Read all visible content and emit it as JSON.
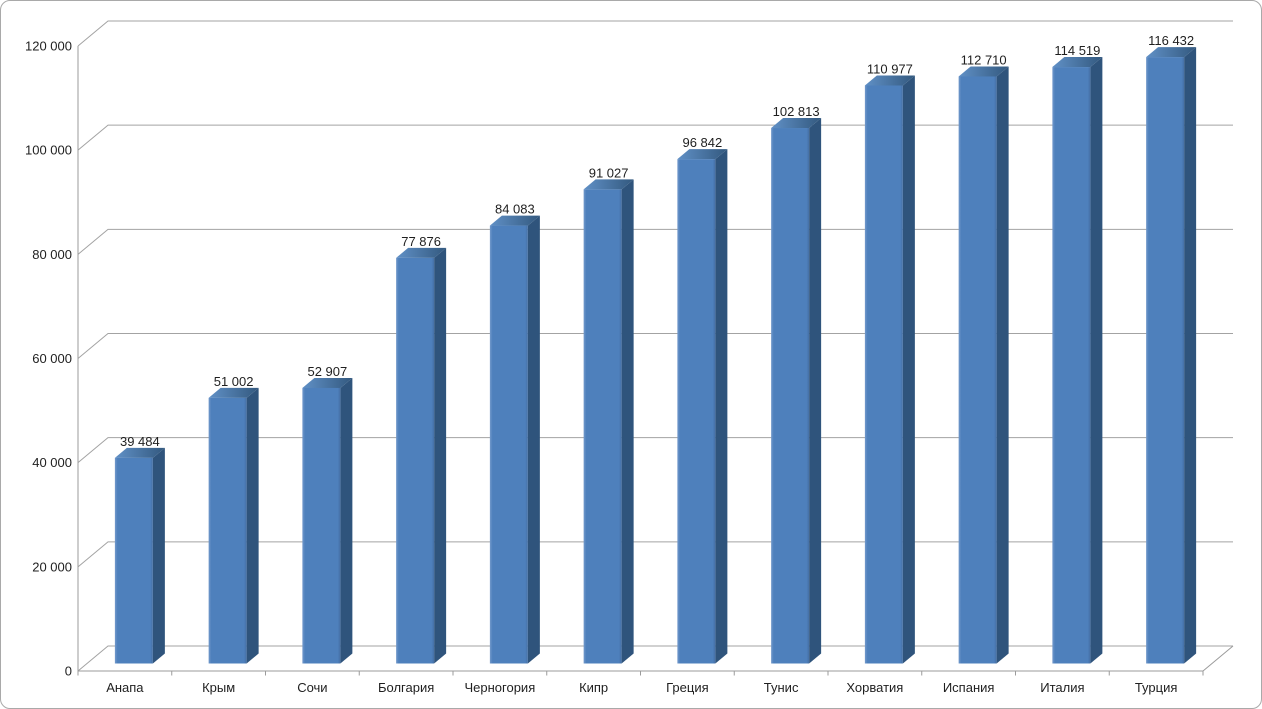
{
  "window": {
    "background": "#FFFFFF",
    "border_color": "#A9A9A9"
  },
  "chart_data": {
    "type": "bar",
    "projection": "3d-column",
    "title": "",
    "xlabel": "",
    "ylabel": "",
    "legend": "none",
    "grid": true,
    "categories": [
      "Анапа",
      "Крым",
      "Сочи",
      "Болгария",
      "Черногория",
      "Кипр",
      "Греция",
      "Тунис",
      "Хорватия",
      "Испания",
      "Италия",
      "Турция"
    ],
    "series": [
      {
        "name": "",
        "values": [
          39484,
          51002,
          52907,
          77876,
          84083,
          91027,
          96842,
          102813,
          110977,
          112710,
          114519,
          116432
        ],
        "value_labels": [
          "39 484",
          "51 002",
          "52 907",
          "77 876",
          "84 083",
          "91 027",
          "96 842",
          "102 813",
          "110 977",
          "112 710",
          "114 519",
          "116 432"
        ]
      }
    ],
    "ylim": [
      0,
      120000
    ],
    "ytick_step": 20000,
    "yticks": [
      0,
      20000,
      40000,
      60000,
      80000,
      100000,
      120000
    ],
    "ytick_labels": [
      "0",
      "20 000",
      "40 000",
      "60 000",
      "80 000",
      "100 000",
      "120 000"
    ],
    "colors": {
      "bar_front": "#4E80BC",
      "bar_front_highlight": "#7299CB",
      "bar_front_shade": "#456FA4",
      "bar_side": "#2F547C",
      "bar_top_light": "#6090C6",
      "bar_top_dark": "#33597F",
      "gridline": "#A3A3A3",
      "axis": "#9B9B9B",
      "label_text": "#1F1F1F",
      "background": "#FFFFFF"
    }
  }
}
